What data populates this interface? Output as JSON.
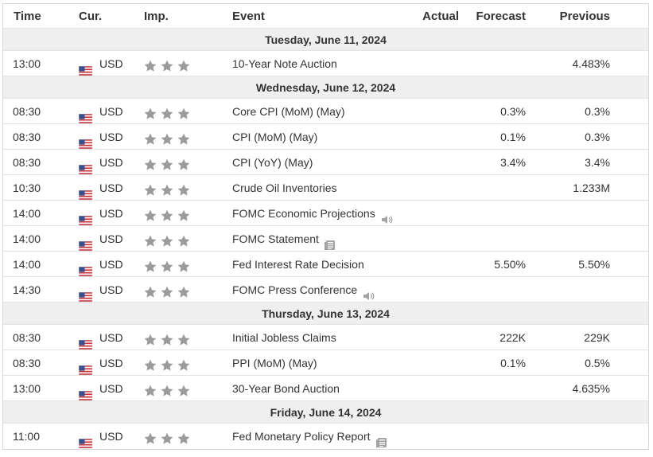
{
  "header": {
    "time": "Time",
    "cur": "Cur.",
    "imp": "Imp.",
    "event": "Event",
    "actual": "Actual",
    "forecast": "Forecast",
    "previous": "Previous"
  },
  "colors": {
    "day_bg": "#efefef",
    "star": "#9b9b9b",
    "border": "#d8d8d8",
    "icon": "#a3a3a3"
  },
  "days": [
    {
      "label": "Tuesday, June 11, 2024",
      "events": [
        {
          "time": "13:00",
          "currency": "USD",
          "importance": 3,
          "event": "10-Year Note Auction",
          "icon": "",
          "actual": "",
          "forecast": "",
          "previous": "4.483%"
        }
      ]
    },
    {
      "label": "Wednesday, June 12, 2024",
      "events": [
        {
          "time": "08:30",
          "currency": "USD",
          "importance": 3,
          "event": "Core CPI (MoM) (May)",
          "icon": "",
          "actual": "",
          "forecast": "0.3%",
          "previous": "0.3%"
        },
        {
          "time": "08:30",
          "currency": "USD",
          "importance": 3,
          "event": "CPI (MoM) (May)",
          "icon": "",
          "actual": "",
          "forecast": "0.1%",
          "previous": "0.3%"
        },
        {
          "time": "08:30",
          "currency": "USD",
          "importance": 3,
          "event": "CPI (YoY) (May)",
          "icon": "",
          "actual": "",
          "forecast": "3.4%",
          "previous": "3.4%"
        },
        {
          "time": "10:30",
          "currency": "USD",
          "importance": 3,
          "event": "Crude Oil Inventories",
          "icon": "",
          "actual": "",
          "forecast": "",
          "previous": "1.233M"
        },
        {
          "time": "14:00",
          "currency": "USD",
          "importance": 3,
          "event": "FOMC Economic Projections",
          "icon": "speaker-icon",
          "actual": "",
          "forecast": "",
          "previous": ""
        },
        {
          "time": "14:00",
          "currency": "USD",
          "importance": 3,
          "event": "FOMC Statement",
          "icon": "document-icon",
          "actual": "",
          "forecast": "",
          "previous": ""
        },
        {
          "time": "14:00",
          "currency": "USD",
          "importance": 3,
          "event": "Fed Interest Rate Decision",
          "icon": "",
          "actual": "",
          "forecast": "5.50%",
          "previous": "5.50%"
        },
        {
          "time": "14:30",
          "currency": "USD",
          "importance": 3,
          "event": "FOMC Press Conference",
          "icon": "speaker-icon",
          "actual": "",
          "forecast": "",
          "previous": ""
        }
      ]
    },
    {
      "label": "Thursday, June 13, 2024",
      "events": [
        {
          "time": "08:30",
          "currency": "USD",
          "importance": 3,
          "event": "Initial Jobless Claims",
          "icon": "",
          "actual": "",
          "forecast": "222K",
          "previous": "229K"
        },
        {
          "time": "08:30",
          "currency": "USD",
          "importance": 3,
          "event": "PPI (MoM) (May)",
          "icon": "",
          "actual": "",
          "forecast": "0.1%",
          "previous": "0.5%"
        },
        {
          "time": "13:00",
          "currency": "USD",
          "importance": 3,
          "event": "30-Year Bond Auction",
          "icon": "",
          "actual": "",
          "forecast": "",
          "previous": "4.635%"
        }
      ]
    },
    {
      "label": "Friday, June 14, 2024",
      "events": [
        {
          "time": "11:00",
          "currency": "USD",
          "importance": 3,
          "event": "Fed Monetary Policy Report",
          "icon": "document-icon",
          "actual": "",
          "forecast": "",
          "previous": ""
        }
      ]
    }
  ]
}
